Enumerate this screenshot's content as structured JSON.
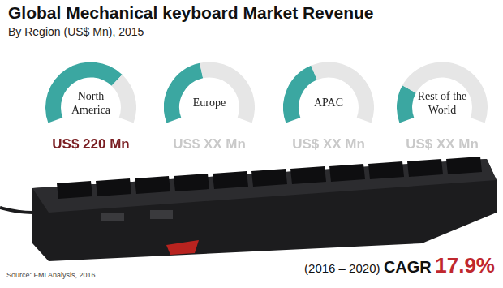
{
  "chart_data": {
    "type": "gauge",
    "title": "Global Mechanical keyboard Market Revenue",
    "subtitle": "By Region (US$ Mn), 2015",
    "categories": [
      "North America",
      "Europe",
      "APAC",
      "Rest of the World"
    ],
    "values": [
      220,
      140,
      125,
      70
    ],
    "value_labels": [
      "US$ 220 Mn",
      "US$ XX Mn",
      "US$ XX Mn",
      "US$ XX Mn"
    ],
    "ylim": [
      0,
      315
    ],
    "color": "#3ba7a1",
    "source": "Source:  FMI Analysis, 2016",
    "cagr": {
      "period": "(2016 – 2020)",
      "label": "CAGR",
      "value": 17.9,
      "value_label": "17.9%"
    }
  }
}
